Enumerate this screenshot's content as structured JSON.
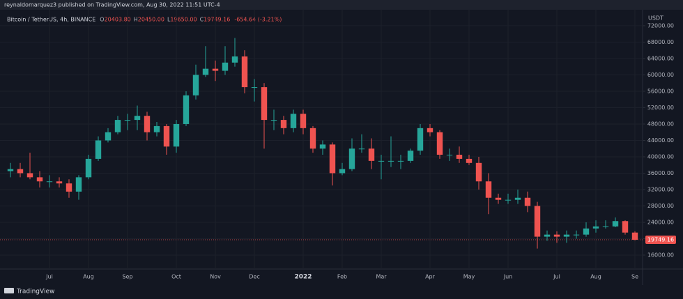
{
  "header": {
    "publisher": "reynaldomarquez3 published on TradingView.com, Aug 30, 2022 11:51 UTC-4"
  },
  "footer": {
    "brand": "TradingView"
  },
  "chart_data": {
    "type": "candlestick",
    "title": "Bitcoin / TetherUS, 4h, BINANCE",
    "legend": [
      {
        "label": "O",
        "value": "20403.80"
      },
      {
        "label": "H",
        "value": "20450.00"
      },
      {
        "label": "L",
        "value": "19650.00"
      },
      {
        "label": "C",
        "value": "19749.16"
      }
    ],
    "change": "-654.64 (-3.21%)",
    "currency": "USDT",
    "up_color": "#26a69a",
    "down_color": "#ef5350",
    "categories": [
      null,
      null,
      null,
      null,
      "Jul",
      null,
      null,
      null,
      "Aug",
      null,
      null,
      null,
      "Sep",
      null,
      null,
      null,
      null,
      "Oct",
      null,
      null,
      null,
      "Nov",
      null,
      null,
      null,
      "Dec",
      null,
      null,
      null,
      null,
      "2022",
      null,
      null,
      null,
      "Feb",
      null,
      null,
      null,
      "Mar",
      null,
      null,
      null,
      null,
      "Apr",
      null,
      null,
      null,
      "May",
      null,
      null,
      null,
      "Jun",
      null,
      null,
      null,
      null,
      "Jul",
      null,
      null,
      null,
      "Aug",
      null,
      null,
      null,
      "Se"
    ],
    "open": [
      36500,
      37000,
      36000,
      35000,
      34000,
      34000,
      33500,
      31500,
      35000,
      39500,
      44000,
      46000,
      49000,
      49000,
      50000,
      46000,
      47500,
      42500,
      48000,
      55000,
      60000,
      61500,
      61000,
      63000,
      64500,
      57000,
      57000,
      49000,
      49000,
      47000,
      50500,
      47000,
      42000,
      43000,
      36000,
      37000,
      42000,
      42000,
      39000,
      39000,
      39000,
      39000,
      41500,
      47000,
      46000,
      40500,
      40500,
      39500,
      38500,
      34000,
      30000,
      29500,
      29500,
      30000,
      28000,
      20500,
      21000,
      20500,
      21000,
      21000,
      22500,
      23000,
      23000,
      24300,
      21500
    ],
    "high": [
      38500,
      38500,
      41000,
      36500,
      35500,
      35000,
      34500,
      35500,
      40500,
      45000,
      47000,
      50000,
      50500,
      52500,
      51000,
      48500,
      48000,
      49000,
      56000,
      62500,
      67000,
      63500,
      67000,
      69000,
      66000,
      59000,
      58000,
      51500,
      50000,
      51500,
      51500,
      47500,
      44000,
      43500,
      38500,
      44500,
      45500,
      44500,
      40500,
      45000,
      40500,
      42000,
      48000,
      48000,
      46500,
      42000,
      42500,
      40500,
      40000,
      36000,
      31000,
      31000,
      32000,
      31500,
      29000,
      22000,
      21800,
      22000,
      22000,
      24000,
      24500,
      24500,
      25200,
      24500,
      21800
    ],
    "low": [
      35000,
      35000,
      34500,
      32500,
      32500,
      32500,
      30000,
      29500,
      34500,
      39000,
      43500,
      45500,
      46500,
      46500,
      44000,
      45000,
      40500,
      41000,
      47500,
      54000,
      59500,
      58500,
      60000,
      62000,
      55500,
      53500,
      42000,
      46500,
      45500,
      46000,
      45500,
      41000,
      40500,
      33000,
      35500,
      36500,
      41000,
      37000,
      34500,
      37500,
      37000,
      38500,
      40500,
      45000,
      39500,
      39000,
      38500,
      38000,
      32000,
      26000,
      28500,
      28500,
      28500,
      26500,
      17600,
      19500,
      19000,
      19000,
      20000,
      20500,
      21500,
      22500,
      22800,
      21000,
      19600
    ],
    "close": [
      37000,
      36000,
      35000,
      34000,
      34000,
      33500,
      31500,
      35000,
      39500,
      44000,
      46000,
      49000,
      49000,
      50000,
      46000,
      47500,
      42500,
      48000,
      55000,
      60000,
      61500,
      61000,
      63000,
      64500,
      57000,
      57000,
      49000,
      49000,
      47000,
      50500,
      47000,
      42000,
      43000,
      36000,
      37000,
      42000,
      42000,
      39000,
      39000,
      39000,
      39000,
      41500,
      47000,
      46000,
      40500,
      40500,
      39500,
      38500,
      34000,
      30000,
      29500,
      29500,
      30000,
      28000,
      20500,
      21000,
      20500,
      21000,
      21000,
      22500,
      23000,
      23000,
      24300,
      21500,
      19749.16
    ],
    "ylim": [
      12600,
      75900
    ],
    "yticks": [
      {
        "value": 16000,
        "label": "16000.00"
      },
      {
        "value": 20000,
        "label": "20000.00"
      },
      {
        "value": 24000,
        "label": "24000.00"
      },
      {
        "value": 28000,
        "label": "28000.00"
      },
      {
        "value": 32000,
        "label": "32000.00"
      },
      {
        "value": 36000,
        "label": "36000.00"
      },
      {
        "value": 40000,
        "label": "40000.00"
      },
      {
        "value": 44000,
        "label": "44000.00"
      },
      {
        "value": 48000,
        "label": "48000.00"
      },
      {
        "value": 52000,
        "label": "52000.00"
      },
      {
        "value": 56000,
        "label": "56000.00"
      },
      {
        "value": 60000,
        "label": "60000.00"
      },
      {
        "value": 64000,
        "label": "64000.00"
      },
      {
        "value": 68000,
        "label": "68000.00"
      },
      {
        "value": 72000,
        "label": "72000.00"
      }
    ],
    "grid": true
  }
}
